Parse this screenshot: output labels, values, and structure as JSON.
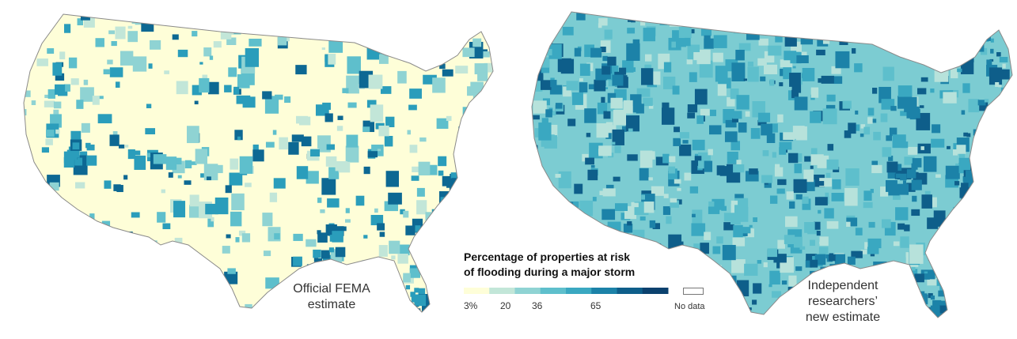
{
  "maps": {
    "left": {
      "label": "Official FEMA\nestimate",
      "land_color": "#fefed8",
      "accent_colors": [
        "#c2e6d8",
        "#8fd3d3",
        "#5ebfcc",
        "#2a9dbb",
        "#0d6893"
      ]
    },
    "right": {
      "label": "Independent\nresearchers’\nnew estimate",
      "land_color": "#7cccd2",
      "accent_colors": [
        "#b7e2db",
        "#5ebfcc",
        "#3aa8c1",
        "#1c82a8",
        "#0e5e8a"
      ]
    }
  },
  "legend": {
    "title": "Percentage of properties at risk\nof flooding during a major storm",
    "ticks": [
      "3%",
      "20",
      "36",
      "65"
    ],
    "no_data_label": "No data",
    "colors": [
      "#fefed8",
      "#c2e6d8",
      "#8fd3d3",
      "#5ebfcc",
      "#3aa8c1",
      "#1c82a8",
      "#0e5e8a",
      "#0b416e"
    ]
  }
}
